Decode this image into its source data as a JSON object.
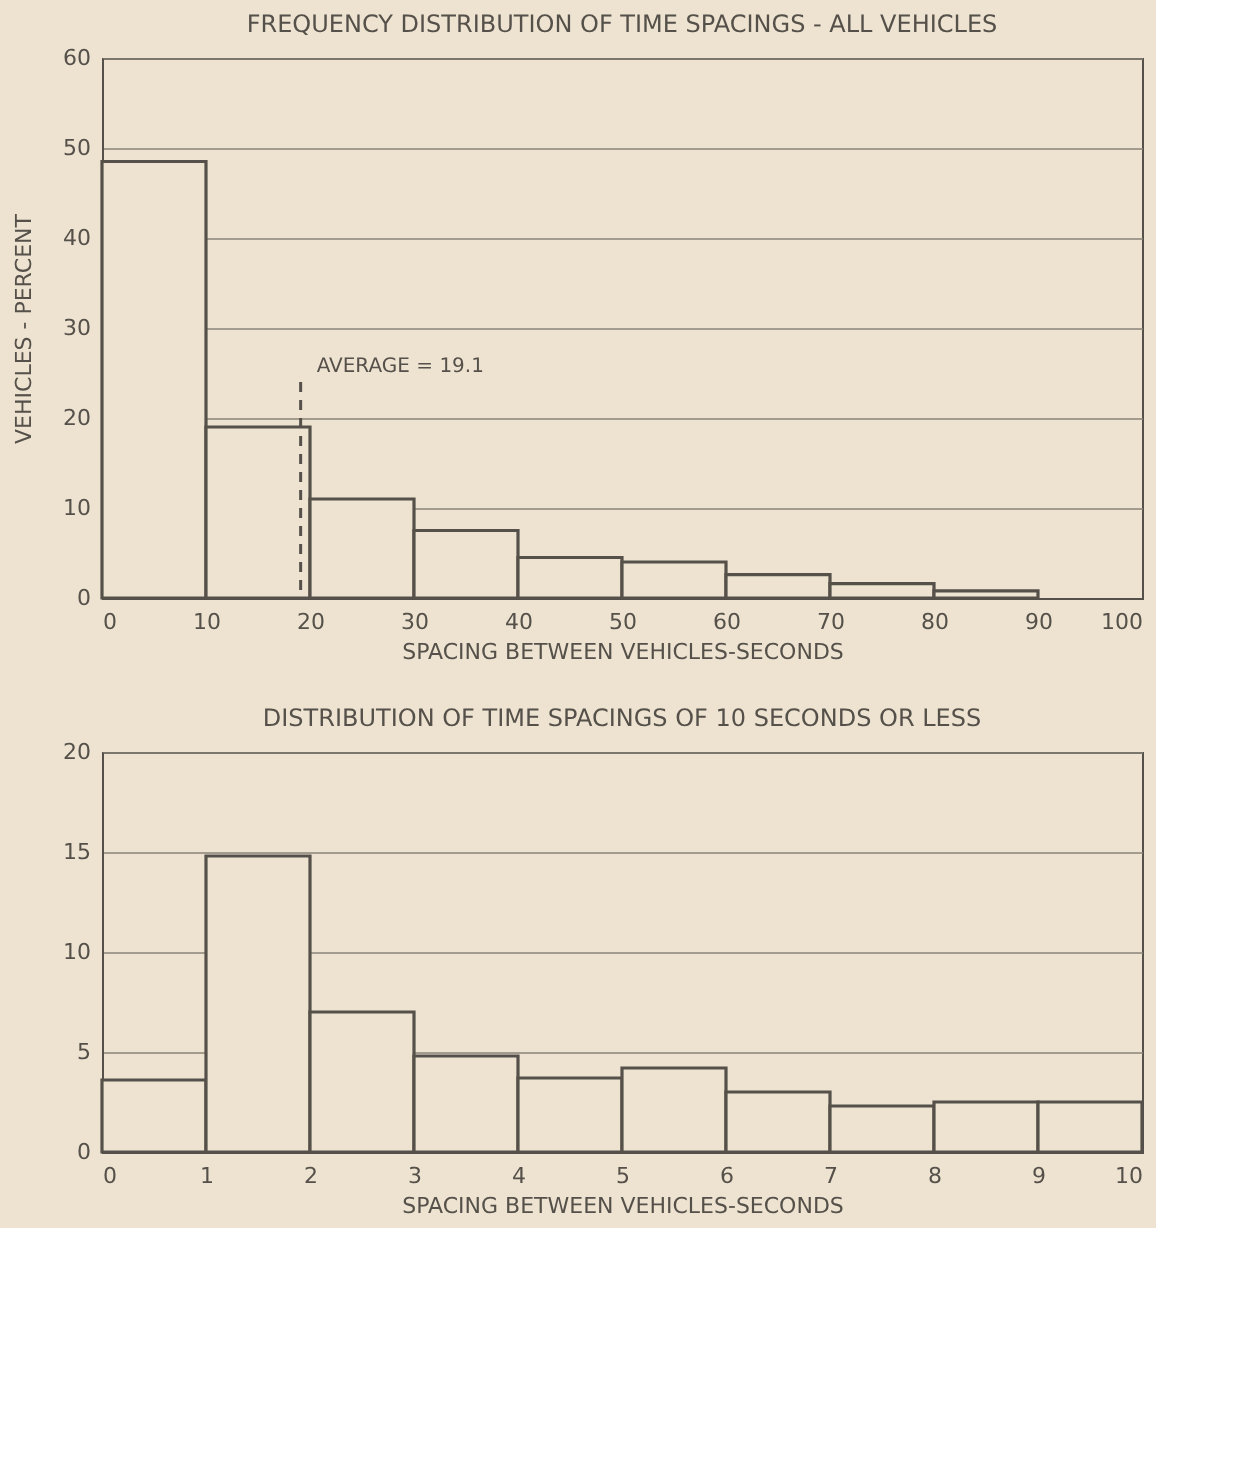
{
  "chart_data": [
    {
      "type": "histogram",
      "title": "FREQUENCY DISTRIBUTION OF TIME SPACINGS - ALL VEHICLES",
      "xlabel": "SPACING BETWEEN VEHICLES-SECONDS",
      "ylabel": "VEHICLES - PERCENT",
      "bins": [
        0,
        10,
        20,
        30,
        40,
        50,
        60,
        70,
        80,
        90
      ],
      "values": [
        48.5,
        19,
        11,
        7.5,
        4.5,
        4,
        2.6,
        1.6,
        0.8
      ],
      "color": "#ede3d0",
      "xlim": [
        0,
        100
      ],
      "xticks": [
        0,
        10,
        20,
        30,
        40,
        50,
        60,
        70,
        80,
        90,
        100
      ],
      "ylim": [
        0,
        60
      ],
      "yticks": [
        0,
        10,
        20,
        30,
        40,
        50,
        60
      ],
      "grid": "y",
      "ref_lines": [
        {
          "axis": "x",
          "value": 19.1,
          "label": "AVERAGE = 19.1",
          "line_style": "dashed"
        }
      ]
    },
    {
      "type": "histogram",
      "title": "DISTRIBUTION OF TIME SPACINGS OF 10 SECONDS OR LESS",
      "xlabel": "SPACING BETWEEN VEHICLES-SECONDS",
      "bins": [
        0,
        1,
        2,
        3,
        4,
        5,
        6,
        7,
        8,
        9,
        10
      ],
      "values": [
        3.6,
        14.8,
        7,
        4.8,
        3.7,
        4.2,
        3,
        2.3,
        2.5,
        2.5
      ],
      "color": "#ede3d0",
      "xlim": [
        0,
        10
      ],
      "xticks": [
        0,
        1,
        2,
        3,
        4,
        5,
        6,
        7,
        8,
        9,
        10
      ],
      "ylim": [
        0,
        20
      ],
      "yticks": [
        0,
        5,
        10,
        15,
        20
      ],
      "grid": "y"
    }
  ]
}
